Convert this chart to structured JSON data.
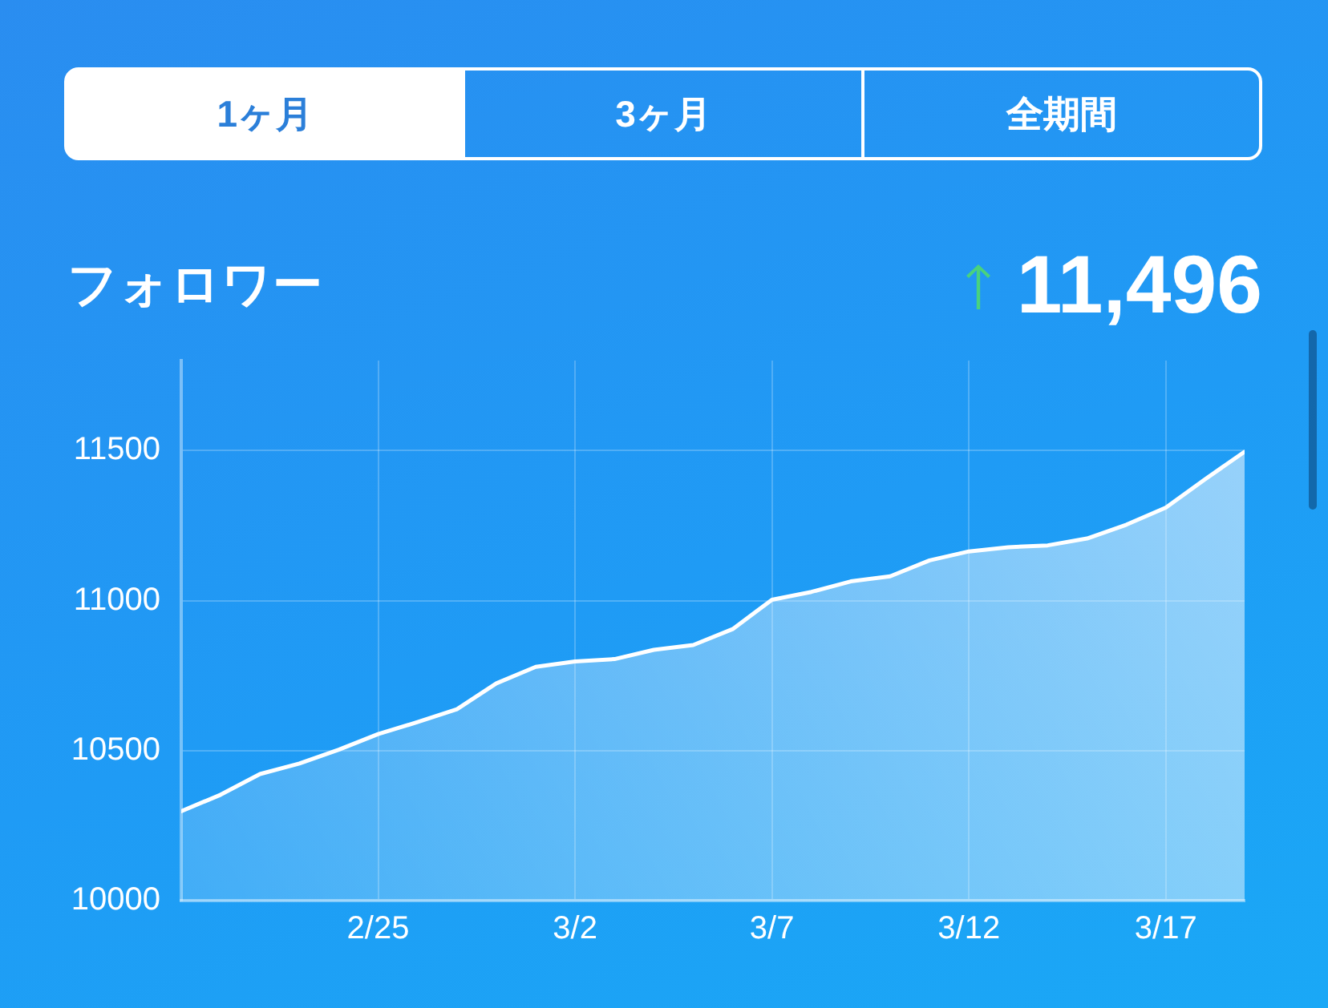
{
  "chart_data": {
    "type": "area",
    "title": "フォロワー",
    "annotations": [
      "1ヶ月",
      "3ヶ月",
      "全期間",
      "11,496"
    ],
    "x": [
      "--02-20",
      "--02-21",
      "--02-22",
      "--02-23",
      "--02-24",
      "--02-25",
      "--02-26",
      "--02-27",
      "--02-28",
      "--03-01",
      "--03-02",
      "--03-03",
      "--03-04",
      "--03-05",
      "--03-06",
      "--03-07",
      "--03-08",
      "--03-09",
      "--03-10",
      "--03-11",
      "--03-12",
      "--03-13",
      "--03-14",
      "--03-15",
      "--03-16",
      "--03-17",
      "--03-18",
      "--03-19"
    ],
    "values": [
      10298,
      10353,
      10422,
      10457,
      10503,
      10555,
      10595,
      10638,
      10724,
      10779,
      10797,
      10805,
      10836,
      10852,
      10905,
      11003,
      11029,
      11064,
      11081,
      11134,
      11164,
      11178,
      11184,
      11207,
      11253,
      11310,
      11405,
      11496
    ],
    "color": "#ffffff",
    "xlim": [
      "--02-20",
      "--03-19"
    ],
    "xticks": [
      {
        "value": "--02-25",
        "label": "2/25"
      },
      {
        "value": "--03-02",
        "label": "3/2"
      },
      {
        "value": "--03-07",
        "label": "3/7"
      },
      {
        "value": "--03-12",
        "label": "3/12"
      },
      {
        "value": "--03-17",
        "label": "3/17"
      }
    ],
    "ylim": [
      10000,
      11800
    ],
    "yticks": [
      10000,
      10500,
      11000,
      11500
    ],
    "grid": true
  }
}
